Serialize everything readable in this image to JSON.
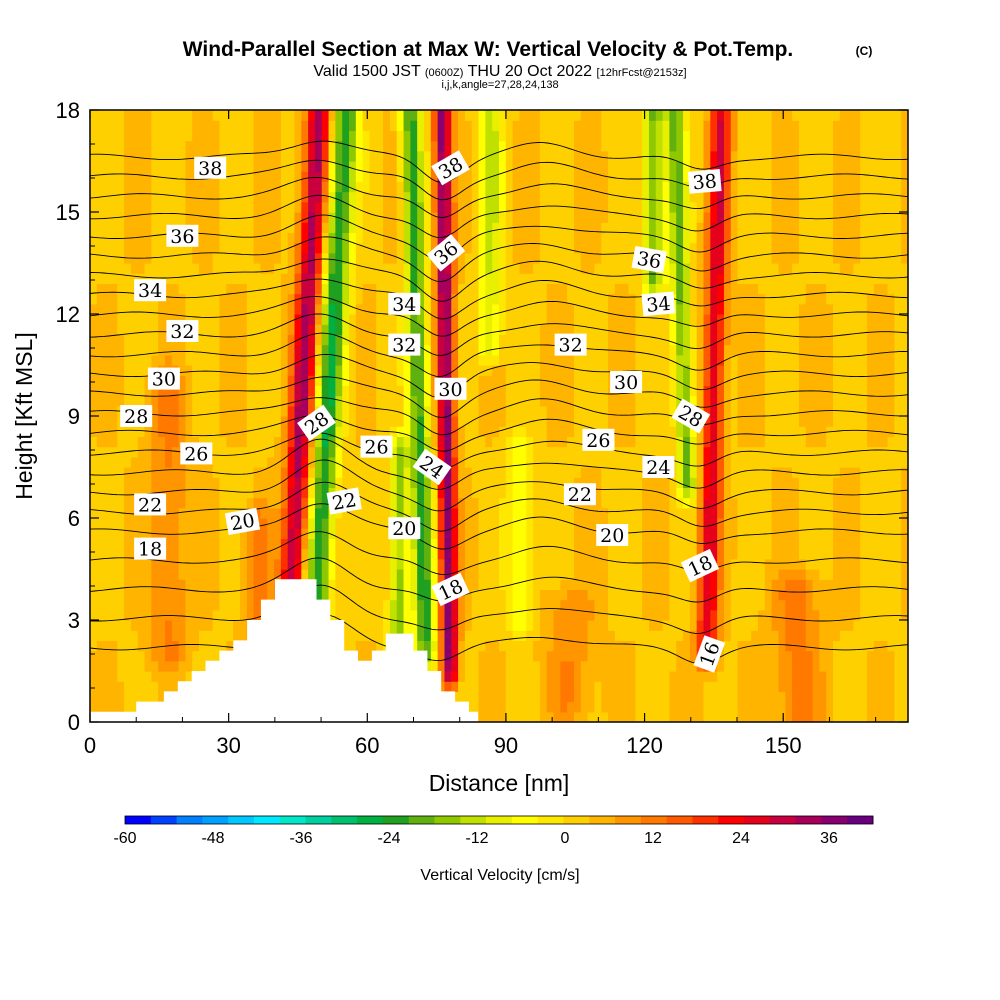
{
  "chart_data": {
    "type": "heatmap",
    "title_main": "Wind-Parallel Section at Max W: Vertical Velocity & Pot.Temp.",
    "title_c": "(C)",
    "subtitle_valid": "Valid 1500 JST",
    "subtitle_z": "(0600Z)",
    "subtitle_date": "THU 20 Oct 2022",
    "subtitle_fcst": "[12hrFcst@2153z]",
    "subtitle_ijk": "i,j,k,angle=27,28,24,138",
    "xlabel": "Distance [nm]",
    "ylabel": "Height [Kft MSL]",
    "xlim": [
      0,
      177
    ],
    "ylim": [
      0,
      18
    ],
    "x_ticks": [
      0,
      30,
      60,
      90,
      120,
      150
    ],
    "y_ticks": [
      0,
      3,
      6,
      9,
      12,
      15,
      18
    ],
    "colorbar": {
      "label": "Vertical Velocity [cm/s]",
      "range": [
        -60,
        42
      ],
      "tick_values": [
        -60,
        -48,
        -36,
        -24,
        -12,
        0,
        12,
        24,
        36
      ],
      "colors": [
        "#0000ff",
        "#0040ff",
        "#0080ff",
        "#00a0ff",
        "#00c8ff",
        "#00e8ff",
        "#00e8c8",
        "#00d0a0",
        "#00c070",
        "#00b040",
        "#20a020",
        "#60b010",
        "#90c800",
        "#c0e000",
        "#e8f000",
        "#ffff00",
        "#ffe800",
        "#ffd000",
        "#ffb400",
        "#ff9600",
        "#ff7800",
        "#ff5a00",
        "#ff3000",
        "#ff0000",
        "#e6001c",
        "#c80040",
        "#a8005a",
        "#880070",
        "#680080"
      ]
    },
    "wind_bands": [
      {
        "x": 42,
        "slope": 0.42,
        "amp": 30,
        "width": 2.6,
        "ymin": 0,
        "ymax": 18
      },
      {
        "x": 47.5,
        "slope": 0.44,
        "amp": -28,
        "width": 2.8,
        "ymin": 0,
        "ymax": 18
      },
      {
        "x": 78,
        "slope": -0.1,
        "amp": 34,
        "width": 1.8,
        "ymin": 1.5,
        "ymax": 18
      },
      {
        "x": 73,
        "slope": -0.2,
        "amp": -26,
        "width": 2.2,
        "ymin": 2,
        "ymax": 18
      },
      {
        "x": 66.5,
        "slope": 0.05,
        "amp": -20,
        "width": 2.0,
        "ymin": 2.5,
        "ymax": 8
      },
      {
        "x": 86,
        "slope": 0.05,
        "amp": -14,
        "width": 2.5,
        "ymin": 11,
        "ymax": 18
      },
      {
        "x": 93,
        "slope": 0.0,
        "amp": -10,
        "width": 3.0,
        "ymin": 3,
        "ymax": 8
      },
      {
        "x": 133,
        "slope": 0.2,
        "amp": 24,
        "width": 2.2,
        "ymin": 2,
        "ymax": 18
      },
      {
        "x": 131,
        "slope": -0.25,
        "amp": -22,
        "width": 2.0,
        "ymin": 7,
        "ymax": 18
      },
      {
        "x": 122,
        "slope": 0.0,
        "amp": -22,
        "width": 2.3,
        "ymin": 13,
        "ymax": 18
      },
      {
        "x": 17,
        "slope": 0.0,
        "amp": 8,
        "width": 4.0,
        "ymin": 2,
        "ymax": 10
      },
      {
        "x": 36,
        "slope": 0.0,
        "amp": 8,
        "width": 3.0,
        "ymin": 1.5,
        "ymax": 6
      },
      {
        "x": 153,
        "slope": 0.0,
        "amp": 9,
        "width": 5.0,
        "ymin": 0,
        "ymax": 4
      },
      {
        "x": 104,
        "slope": 0.0,
        "amp": 7,
        "width": 5.0,
        "ymin": 0.5,
        "ymax": 3.5
      }
    ],
    "terrain": [
      [
        0,
        0.3
      ],
      [
        10,
        0.3
      ],
      [
        10,
        0.6
      ],
      [
        16,
        0.6
      ],
      [
        16,
        0.9
      ],
      [
        19,
        0.9
      ],
      [
        19,
        1.2
      ],
      [
        22,
        1.2
      ],
      [
        22,
        1.5
      ],
      [
        25,
        1.5
      ],
      [
        25,
        1.8
      ],
      [
        28,
        1.8
      ],
      [
        28,
        2.1
      ],
      [
        31,
        2.1
      ],
      [
        31,
        2.4
      ],
      [
        34,
        2.4
      ],
      [
        34,
        3.0
      ],
      [
        37,
        3.0
      ],
      [
        37,
        3.6
      ],
      [
        40,
        3.6
      ],
      [
        40,
        4.2
      ],
      [
        49,
        4.2
      ],
      [
        49,
        3.6
      ],
      [
        52,
        3.6
      ],
      [
        52,
        3.0
      ],
      [
        55,
        3.0
      ],
      [
        55,
        2.1
      ],
      [
        58,
        2.1
      ],
      [
        58,
        1.8
      ],
      [
        61,
        1.8
      ],
      [
        61,
        2.1
      ],
      [
        64,
        2.1
      ],
      [
        64,
        2.6
      ],
      [
        70,
        2.6
      ],
      [
        70,
        2.1
      ],
      [
        73,
        2.1
      ],
      [
        73,
        1.5
      ],
      [
        76,
        1.5
      ],
      [
        76,
        0.9
      ],
      [
        79,
        0.9
      ],
      [
        79,
        0.6
      ],
      [
        82,
        0.6
      ],
      [
        82,
        0.3
      ],
      [
        84,
        0.3
      ],
      [
        84,
        0
      ],
      [
        0,
        0
      ]
    ],
    "theta_levels": [
      16,
      17,
      18,
      19,
      20,
      21,
      22,
      23,
      24,
      25,
      26,
      27,
      28,
      29,
      30,
      31,
      32,
      33,
      34,
      35,
      36,
      37,
      38,
      39
    ],
    "theta_labels": [
      {
        "text": "38",
        "x": 26,
        "y": 16.3,
        "rot": 0
      },
      {
        "text": "36",
        "x": 20,
        "y": 14.3,
        "rot": 0
      },
      {
        "text": "34",
        "x": 13,
        "y": 12.7,
        "rot": 0
      },
      {
        "text": "32",
        "x": 20,
        "y": 11.5,
        "rot": 0
      },
      {
        "text": "30",
        "x": 16,
        "y": 10.1,
        "rot": 0
      },
      {
        "text": "28",
        "x": 10,
        "y": 9.0,
        "rot": 0
      },
      {
        "text": "26",
        "x": 23,
        "y": 7.9,
        "rot": 0
      },
      {
        "text": "22",
        "x": 13,
        "y": 6.4,
        "rot": 0
      },
      {
        "text": "20",
        "x": 33,
        "y": 5.9,
        "rot": -10
      },
      {
        "text": "18",
        "x": 13,
        "y": 5.1,
        "rot": 0
      },
      {
        "text": "28",
        "x": 49,
        "y": 8.8,
        "rot": -35
      },
      {
        "text": "26",
        "x": 62,
        "y": 8.1,
        "rot": 0
      },
      {
        "text": "22",
        "x": 55,
        "y": 6.5,
        "rot": -10
      },
      {
        "text": "34",
        "x": 68,
        "y": 12.3,
        "rot": 0
      },
      {
        "text": "32",
        "x": 68,
        "y": 11.1,
        "rot": 0
      },
      {
        "text": "20",
        "x": 68,
        "y": 5.7,
        "rot": 0
      },
      {
        "text": "38",
        "x": 78,
        "y": 16.3,
        "rot": -30
      },
      {
        "text": "36",
        "x": 77,
        "y": 13.8,
        "rot": -40
      },
      {
        "text": "30",
        "x": 78,
        "y": 9.8,
        "rot": 0
      },
      {
        "text": "24",
        "x": 74,
        "y": 7.5,
        "rot": 35
      },
      {
        "text": "18",
        "x": 78,
        "y": 3.9,
        "rot": -25
      },
      {
        "text": "38",
        "x": 133,
        "y": 15.9,
        "rot": -5
      },
      {
        "text": "36",
        "x": 121,
        "y": 13.6,
        "rot": 10
      },
      {
        "text": "34",
        "x": 123,
        "y": 12.3,
        "rot": -5
      },
      {
        "text": "32",
        "x": 104,
        "y": 11.1,
        "rot": 0
      },
      {
        "text": "30",
        "x": 116,
        "y": 10.0,
        "rot": 0
      },
      {
        "text": "28",
        "x": 130,
        "y": 9.0,
        "rot": 30
      },
      {
        "text": "26",
        "x": 110,
        "y": 8.3,
        "rot": 0
      },
      {
        "text": "24",
        "x": 123,
        "y": 7.5,
        "rot": 0
      },
      {
        "text": "22",
        "x": 106,
        "y": 6.7,
        "rot": 0
      },
      {
        "text": "20",
        "x": 113,
        "y": 5.5,
        "rot": 0
      },
      {
        "text": "18",
        "x": 132,
        "y": 4.6,
        "rot": -25
      },
      {
        "text": "16",
        "x": 134,
        "y": 2.0,
        "rot": -70
      }
    ]
  }
}
